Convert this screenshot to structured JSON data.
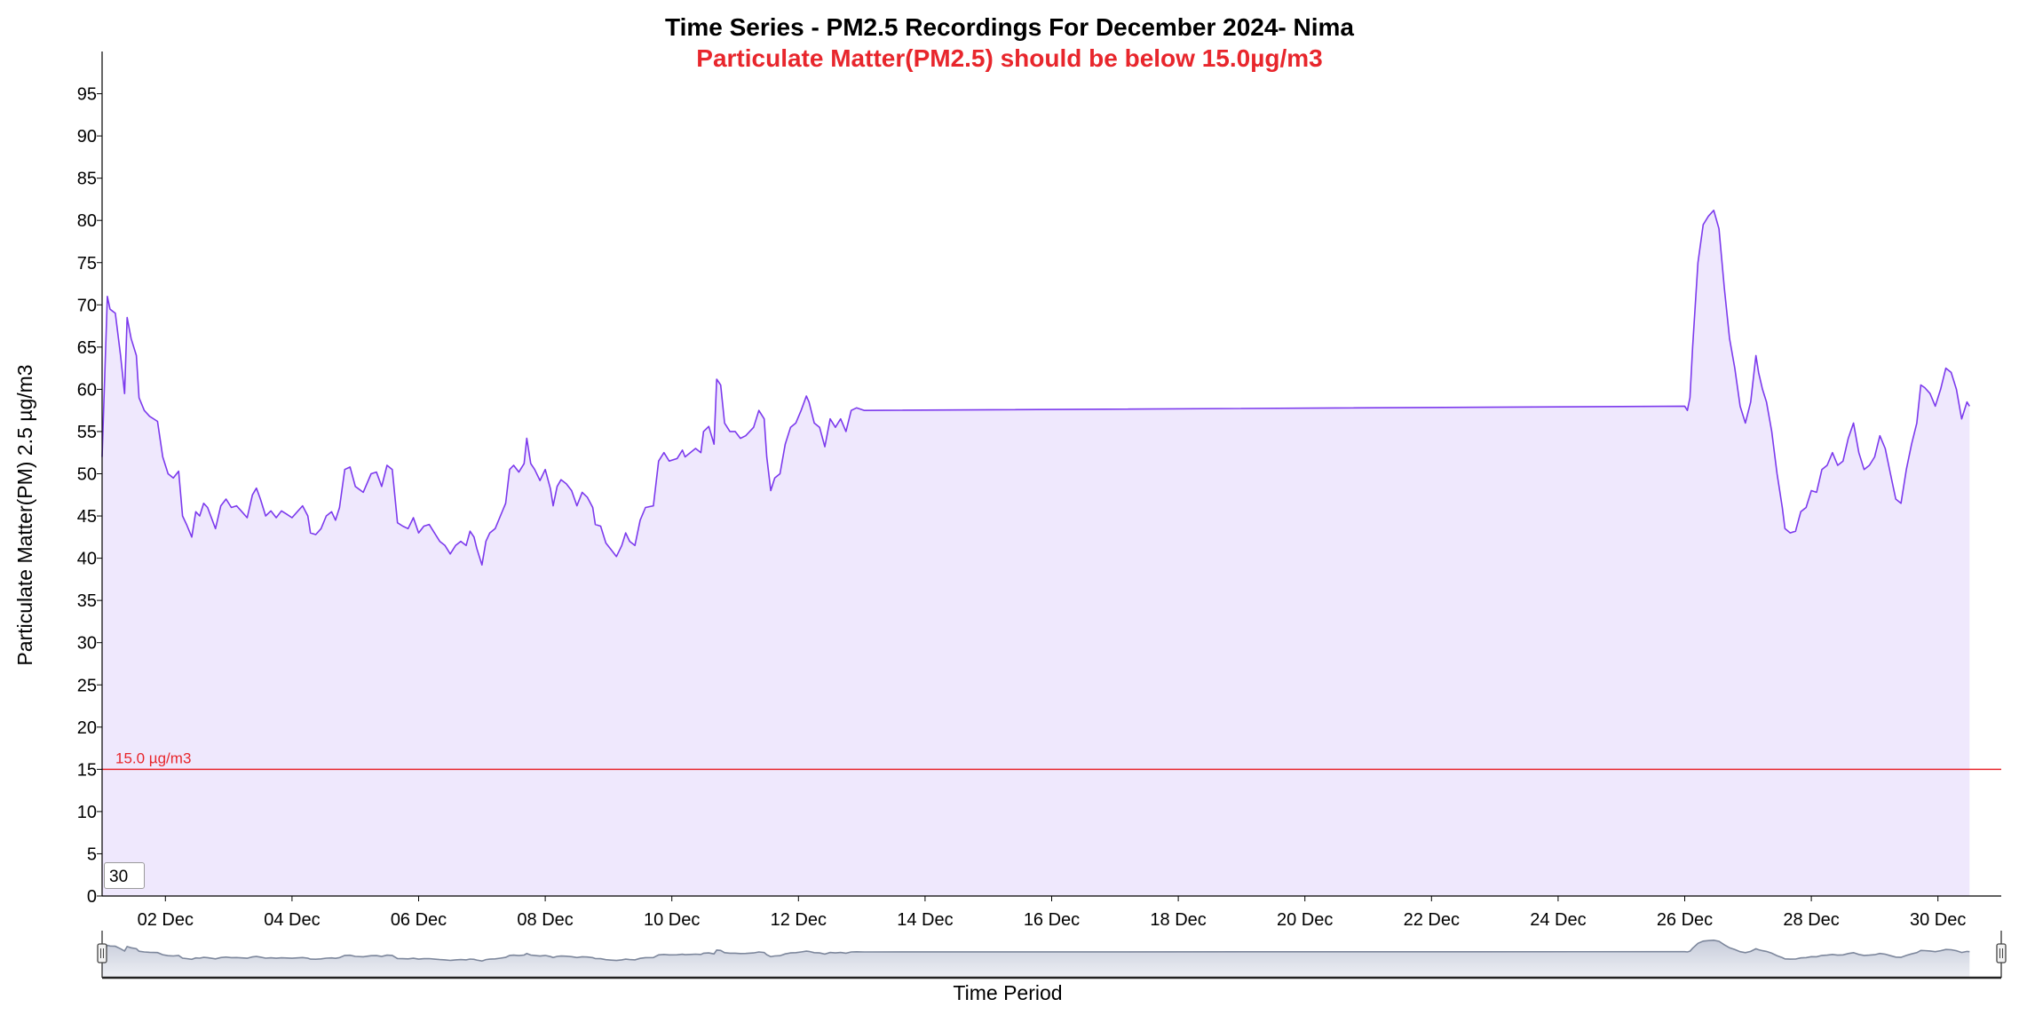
{
  "chart_data": {
    "type": "area",
    "title": "Time Series - PM2.5 Recordings For December 2024- Nima",
    "subtitle": "Particulate Matter(PM2.5) should be below 15.0µg/m3",
    "xlabel": "Time Period",
    "ylabel": "Particulate Matter(PM) 2.5 µg/m3",
    "ylim": [
      0,
      100
    ],
    "yticks": [
      0,
      5,
      10,
      15,
      20,
      25,
      30,
      35,
      40,
      45,
      50,
      55,
      60,
      65,
      70,
      75,
      80,
      85,
      90,
      95
    ],
    "xlim": [
      "2024-12-01T00:00",
      "2024-12-31T00:00"
    ],
    "xticks": [
      {
        "label": "02 Dec",
        "date": "2024-12-02"
      },
      {
        "label": "04 Dec",
        "date": "2024-12-04"
      },
      {
        "label": "06 Dec",
        "date": "2024-12-06"
      },
      {
        "label": "08 Dec",
        "date": "2024-12-08"
      },
      {
        "label": "10 Dec",
        "date": "2024-12-10"
      },
      {
        "label": "12 Dec",
        "date": "2024-12-12"
      },
      {
        "label": "14 Dec",
        "date": "2024-12-14"
      },
      {
        "label": "16 Dec",
        "date": "2024-12-16"
      },
      {
        "label": "18 Dec",
        "date": "2024-12-18"
      },
      {
        "label": "20 Dec",
        "date": "2024-12-20"
      },
      {
        "label": "22 Dec",
        "date": "2024-12-22"
      },
      {
        "label": "24 Dec",
        "date": "2024-12-24"
      },
      {
        "label": "26 Dec",
        "date": "2024-12-26"
      },
      {
        "label": "28 Dec",
        "date": "2024-12-28"
      },
      {
        "label": "30 Dec",
        "date": "2024-12-30"
      }
    ],
    "threshold": {
      "value": 15,
      "label": "15.0 µg/m3",
      "color": "#e8262c"
    },
    "moving_average_window": "30",
    "grid": false,
    "line_color": "#7c3aed",
    "fill_color": "#efe8fd",
    "navigator": true,
    "navigator_fill": "#c7ccda",
    "navigator_line": "#7d879c",
    "series": [
      {
        "points": [
          [
            "2024-12-01T00:00",
            52
          ],
          [
            "2024-12-01T02:00",
            71
          ],
          [
            "2024-12-01T03:00",
            69.5
          ],
          [
            "2024-12-01T05:00",
            69
          ],
          [
            "2024-12-01T07:00",
            64
          ],
          [
            "2024-12-01T08:30",
            59.5
          ],
          [
            "2024-12-01T09:30",
            68.5
          ],
          [
            "2024-12-01T11:00",
            66
          ],
          [
            "2024-12-01T13:00",
            64
          ],
          [
            "2024-12-01T14:00",
            59
          ],
          [
            "2024-12-01T16:00",
            57.5
          ],
          [
            "2024-12-01T18:00",
            56.8
          ],
          [
            "2024-12-01T21:00",
            56.2
          ],
          [
            "2024-12-01T23:00",
            52
          ],
          [
            "2024-12-02T01:00",
            50
          ],
          [
            "2024-12-02T03:00",
            49.5
          ],
          [
            "2024-12-02T05:00",
            50.3
          ],
          [
            "2024-12-02T06:30",
            45
          ],
          [
            "2024-12-02T08:00",
            44
          ],
          [
            "2024-12-02T10:00",
            42.5
          ],
          [
            "2024-12-02T11:30",
            45.5
          ],
          [
            "2024-12-02T13:00",
            45
          ],
          [
            "2024-12-02T14:30",
            46.5
          ],
          [
            "2024-12-02T16:00",
            46
          ],
          [
            "2024-12-02T19:00",
            43.5
          ],
          [
            "2024-12-02T21:00",
            46.2
          ],
          [
            "2024-12-02T23:00",
            47
          ],
          [
            "2024-12-03T01:00",
            46
          ],
          [
            "2024-12-03T03:00",
            46.2
          ],
          [
            "2024-12-03T05:00",
            45.5
          ],
          [
            "2024-12-03T07:00",
            44.8
          ],
          [
            "2024-12-03T09:00",
            47.5
          ],
          [
            "2024-12-03T10:30",
            48.3
          ],
          [
            "2024-12-03T12:00",
            47
          ],
          [
            "2024-12-03T14:00",
            45
          ],
          [
            "2024-12-03T16:00",
            45.6
          ],
          [
            "2024-12-03T18:00",
            44.8
          ],
          [
            "2024-12-03T20:00",
            45.6
          ],
          [
            "2024-12-03T22:00",
            45.2
          ],
          [
            "2024-12-04T00:00",
            44.8
          ],
          [
            "2024-12-04T02:00",
            45.5
          ],
          [
            "2024-12-04T04:00",
            46.2
          ],
          [
            "2024-12-04T06:00",
            45
          ],
          [
            "2024-12-04T07:00",
            43
          ],
          [
            "2024-12-04T09:00",
            42.8
          ],
          [
            "2024-12-04T11:00",
            43.5
          ],
          [
            "2024-12-04T13:00",
            45
          ],
          [
            "2024-12-04T15:00",
            45.5
          ],
          [
            "2024-12-04T16:30",
            44.5
          ],
          [
            "2024-12-04T18:00",
            46
          ],
          [
            "2024-12-04T20:00",
            50.5
          ],
          [
            "2024-12-04T22:00",
            50.8
          ],
          [
            "2024-12-05T00:00",
            48.5
          ],
          [
            "2024-12-05T03:00",
            47.8
          ],
          [
            "2024-12-05T06:00",
            50
          ],
          [
            "2024-12-05T08:00",
            50.2
          ],
          [
            "2024-12-05T10:00",
            48.5
          ],
          [
            "2024-12-05T12:00",
            51
          ],
          [
            "2024-12-05T14:00",
            50.5
          ],
          [
            "2024-12-05T16:00",
            44.2
          ],
          [
            "2024-12-05T18:00",
            43.8
          ],
          [
            "2024-12-05T20:00",
            43.5
          ],
          [
            "2024-12-05T22:00",
            44.8
          ],
          [
            "2024-12-06T00:00",
            43
          ],
          [
            "2024-12-06T02:00",
            43.8
          ],
          [
            "2024-12-06T04:00",
            44
          ],
          [
            "2024-12-06T06:00",
            43
          ],
          [
            "2024-12-06T08:00",
            42
          ],
          [
            "2024-12-06T10:00",
            41.5
          ],
          [
            "2024-12-06T12:00",
            40.5
          ],
          [
            "2024-12-06T14:00",
            41.5
          ],
          [
            "2024-12-06T16:00",
            42
          ],
          [
            "2024-12-06T18:00",
            41.5
          ],
          [
            "2024-12-06T19:30",
            43.2
          ],
          [
            "2024-12-06T21:00",
            42.5
          ],
          [
            "2024-12-06T22:00",
            41.2
          ],
          [
            "2024-12-07T00:00",
            39.2
          ],
          [
            "2024-12-07T01:30",
            42
          ],
          [
            "2024-12-07T03:00",
            43
          ],
          [
            "2024-12-07T05:00",
            43.5
          ],
          [
            "2024-12-07T07:00",
            45
          ],
          [
            "2024-12-07T09:00",
            46.5
          ],
          [
            "2024-12-07T10:30",
            50.5
          ],
          [
            "2024-12-07T12:00",
            51
          ],
          [
            "2024-12-07T14:00",
            50.2
          ],
          [
            "2024-12-07T16:00",
            51.2
          ],
          [
            "2024-12-07T17:00",
            54.2
          ],
          [
            "2024-12-07T18:30",
            51.2
          ],
          [
            "2024-12-07T20:00",
            50.5
          ],
          [
            "2024-12-07T22:00",
            49.2
          ],
          [
            "2024-12-08T00:00",
            50.5
          ],
          [
            "2024-12-08T02:00",
            48.2
          ],
          [
            "2024-12-08T03:00",
            46.2
          ],
          [
            "2024-12-08T04:30",
            48.5
          ],
          [
            "2024-12-08T06:00",
            49.3
          ],
          [
            "2024-12-08T08:00",
            48.8
          ],
          [
            "2024-12-08T10:00",
            48
          ],
          [
            "2024-12-08T12:00",
            46.2
          ],
          [
            "2024-12-08T14:00",
            47.8
          ],
          [
            "2024-12-08T16:00",
            47.2
          ],
          [
            "2024-12-08T18:00",
            46
          ],
          [
            "2024-12-08T19:00",
            44
          ],
          [
            "2024-12-08T21:00",
            43.8
          ],
          [
            "2024-12-08T23:00",
            41.8
          ],
          [
            "2024-12-09T01:00",
            41
          ],
          [
            "2024-12-09T03:00",
            40.2
          ],
          [
            "2024-12-09T05:00",
            41.5
          ],
          [
            "2024-12-09T06:30",
            43
          ],
          [
            "2024-12-09T08:00",
            42
          ],
          [
            "2024-12-09T10:00",
            41.5
          ],
          [
            "2024-12-09T12:00",
            44.5
          ],
          [
            "2024-12-09T14:00",
            46
          ],
          [
            "2024-12-09T17:00",
            46.2
          ],
          [
            "2024-12-09T19:00",
            51.5
          ],
          [
            "2024-12-09T21:00",
            52.5
          ],
          [
            "2024-12-09T23:00",
            51.5
          ],
          [
            "2024-12-10T02:00",
            51.8
          ],
          [
            "2024-12-10T04:00",
            52.8
          ],
          [
            "2024-12-10T05:00",
            52
          ],
          [
            "2024-12-10T07:00",
            52.5
          ],
          [
            "2024-12-10T09:00",
            53
          ],
          [
            "2024-12-10T11:00",
            52.5
          ],
          [
            "2024-12-10T12:00",
            55
          ],
          [
            "2024-12-10T14:00",
            55.6
          ],
          [
            "2024-12-10T16:00",
            53.5
          ],
          [
            "2024-12-10T17:00",
            61.2
          ],
          [
            "2024-12-10T18:30",
            60.5
          ],
          [
            "2024-12-10T20:00",
            56
          ],
          [
            "2024-12-10T22:00",
            55
          ],
          [
            "2024-12-11T00:00",
            55
          ],
          [
            "2024-12-11T02:00",
            54.2
          ],
          [
            "2024-12-11T04:00",
            54.5
          ],
          [
            "2024-12-11T07:00",
            55.5
          ],
          [
            "2024-12-11T09:00",
            57.5
          ],
          [
            "2024-12-11T11:00",
            56.5
          ],
          [
            "2024-12-11T12:00",
            52
          ],
          [
            "2024-12-11T13:30",
            48
          ],
          [
            "2024-12-11T15:00",
            49.5
          ],
          [
            "2024-12-11T17:00",
            50
          ],
          [
            "2024-12-11T19:00",
            53.5
          ],
          [
            "2024-12-11T21:00",
            55.5
          ],
          [
            "2024-12-11T23:00",
            56
          ],
          [
            "2024-12-12T01:00",
            57.5
          ],
          [
            "2024-12-12T03:00",
            59.2
          ],
          [
            "2024-12-12T04:00",
            58.5
          ],
          [
            "2024-12-12T06:00",
            56
          ],
          [
            "2024-12-12T08:00",
            55.5
          ],
          [
            "2024-12-12T10:00",
            53.2
          ],
          [
            "2024-12-12T12:00",
            56.5
          ],
          [
            "2024-12-12T14:00",
            55.5
          ],
          [
            "2024-12-12T16:00",
            56.5
          ],
          [
            "2024-12-12T18:00",
            55
          ],
          [
            "2024-12-12T20:00",
            57.5
          ],
          [
            "2024-12-12T22:00",
            57.8
          ],
          [
            "2024-12-13T01:00",
            57.5
          ],
          [
            "2024-12-26T00:00",
            58
          ],
          [
            "2024-12-26T01:00",
            57.5
          ],
          [
            "2024-12-26T02:00",
            59
          ],
          [
            "2024-12-26T03:00",
            65
          ],
          [
            "2024-12-26T05:00",
            75
          ],
          [
            "2024-12-26T07:00",
            79.5
          ],
          [
            "2024-12-26T09:00",
            80.5
          ],
          [
            "2024-12-26T11:00",
            81.2
          ],
          [
            "2024-12-26T13:00",
            79
          ],
          [
            "2024-12-26T15:00",
            72
          ],
          [
            "2024-12-26T17:00",
            66
          ],
          [
            "2024-12-26T19:00",
            62.5
          ],
          [
            "2024-12-26T21:00",
            58
          ],
          [
            "2024-12-26T23:00",
            56
          ],
          [
            "2024-12-27T01:00",
            58.5
          ],
          [
            "2024-12-27T03:00",
            64
          ],
          [
            "2024-12-27T04:00",
            62
          ],
          [
            "2024-12-27T05:30",
            60
          ],
          [
            "2024-12-27T07:00",
            58.5
          ],
          [
            "2024-12-27T09:00",
            55
          ],
          [
            "2024-12-27T11:00",
            50
          ],
          [
            "2024-12-27T13:00",
            46
          ],
          [
            "2024-12-27T14:00",
            43.5
          ],
          [
            "2024-12-27T16:00",
            43
          ],
          [
            "2024-12-27T18:00",
            43.2
          ],
          [
            "2024-12-27T20:00",
            45.5
          ],
          [
            "2024-12-27T22:00",
            46
          ],
          [
            "2024-12-28T00:00",
            48
          ],
          [
            "2024-12-28T02:00",
            47.8
          ],
          [
            "2024-12-28T04:00",
            50.5
          ],
          [
            "2024-12-28T06:00",
            51
          ],
          [
            "2024-12-28T08:00",
            52.5
          ],
          [
            "2024-12-28T10:00",
            51
          ],
          [
            "2024-12-28T12:00",
            51.5
          ],
          [
            "2024-12-28T14:00",
            54.2
          ],
          [
            "2024-12-28T16:00",
            56
          ],
          [
            "2024-12-28T18:00",
            52.5
          ],
          [
            "2024-12-28T20:00",
            50.5
          ],
          [
            "2024-12-28T22:00",
            51
          ],
          [
            "2024-12-29T00:00",
            52
          ],
          [
            "2024-12-29T02:00",
            54.5
          ],
          [
            "2024-12-29T04:00",
            53
          ],
          [
            "2024-12-29T06:00",
            50
          ],
          [
            "2024-12-29T08:00",
            47
          ],
          [
            "2024-12-29T10:00",
            46.5
          ],
          [
            "2024-12-29T12:00",
            50.5
          ],
          [
            "2024-12-29T14:00",
            53.5
          ],
          [
            "2024-12-29T16:00",
            56
          ],
          [
            "2024-12-29T17:30",
            60.5
          ],
          [
            "2024-12-29T19:00",
            60.2
          ],
          [
            "2024-12-29T21:00",
            59.5
          ],
          [
            "2024-12-29T23:00",
            58
          ],
          [
            "2024-12-30T01:00",
            60
          ],
          [
            "2024-12-30T03:00",
            62.5
          ],
          [
            "2024-12-30T05:00",
            62
          ],
          [
            "2024-12-30T07:00",
            60
          ],
          [
            "2024-12-30T09:00",
            56.5
          ],
          [
            "2024-12-30T10:00",
            57.5
          ],
          [
            "2024-12-30T11:00",
            58.5
          ],
          [
            "2024-12-30T12:00",
            58
          ]
        ]
      }
    ]
  }
}
